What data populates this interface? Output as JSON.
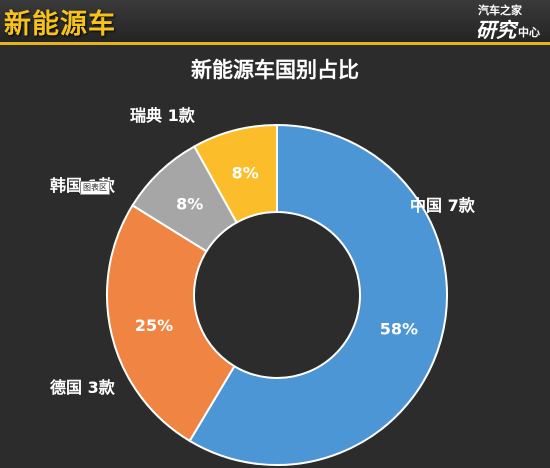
{
  "header": {
    "title": "新能源车",
    "brand_top": "汽车之家",
    "brand_main": "研究",
    "brand_sub": "中心"
  },
  "tooltip": {
    "text": "图表区"
  },
  "colors": {
    "background": "#2c2c2c",
    "title": "#f7c31a",
    "china": "#4d96d6",
    "germany": "#f08442",
    "korea": "#a6a6a6",
    "sweden": "#fbbd2a"
  },
  "chart_data": {
    "type": "pie",
    "donut": true,
    "title": "新能源车国别占比",
    "slices": [
      {
        "label": "中国 7款",
        "value": 58,
        "pct_label": "58%",
        "color": "#4d96d6"
      },
      {
        "label": "德国 3款",
        "value": 25,
        "pct_label": "25%",
        "color": "#f08442"
      },
      {
        "label": "韩国 1款",
        "value": 8,
        "pct_label": "8%",
        "color": "#a6a6a6"
      },
      {
        "label": "瑞典 1款",
        "value": 8,
        "pct_label": "8%",
        "color": "#fbbd2a"
      }
    ]
  }
}
